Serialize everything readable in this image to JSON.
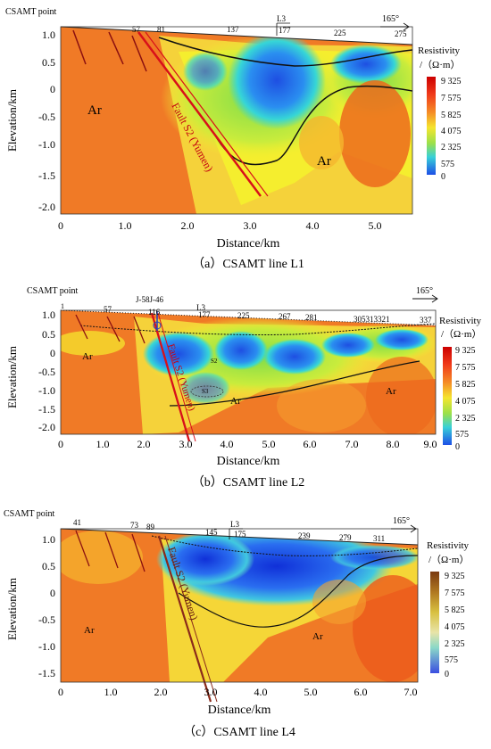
{
  "panels": [
    {
      "id": "a",
      "top_label": "CSAMT point",
      "points": [
        "57",
        "81",
        "137",
        "177",
        "225",
        "275"
      ],
      "line_marker": "L3",
      "azimuth": "165°",
      "inner_labels": [
        "Ar",
        "Ar"
      ],
      "fault_label": "Fault S2 (Yumen)",
      "caption": "（a）CSAMT line L1",
      "ylabel": "Elevation/km",
      "xlabel": "Distance/km",
      "yticks": [
        "1.0",
        "0.5",
        "0",
        "-0.5",
        "-1.0",
        "-1.5",
        "-2.0"
      ],
      "xticks": [
        "0",
        "1.0",
        "2.0",
        "3.0",
        "4.0",
        "5.0"
      ],
      "legend_title": [
        "Resistivity",
        "/（Ω·m）"
      ],
      "legend_values": [
        "9 325",
        "7 575",
        "5 825",
        "4 075",
        "2 325",
        "575",
        "0"
      ]
    },
    {
      "id": "b",
      "top_label": "CSAMT point",
      "well_label": "J-58J-46",
      "points": [
        "1",
        "57",
        "116",
        "177",
        "225",
        "267",
        "281",
        "305313321",
        "337"
      ],
      "line_marker": "L3",
      "azimuth": "165°",
      "inner_labels": [
        "Ar",
        "Ar",
        "Ar",
        "S2",
        "S3"
      ],
      "fault_label": "Fault S2 (Yumen)",
      "caption": "（b）CSAMT line L2",
      "ylabel": "Elevation/km",
      "xlabel": "Distance/km",
      "yticks": [
        "1.0",
        "0.5",
        "0",
        "-0.5",
        "-1.0",
        "-1.5",
        "-2.0"
      ],
      "xticks": [
        "0",
        "1.0",
        "2.0",
        "3.0",
        "4.0",
        "5.0",
        "6.0",
        "7.0",
        "8.0",
        "9.0"
      ],
      "legend_title": [
        "Resistivity",
        "/（Ω·m）"
      ],
      "legend_values": [
        "9 325",
        "7 575",
        "5 825",
        "4 075",
        "2 325",
        "575",
        "0"
      ]
    },
    {
      "id": "c",
      "top_label": "CSAMT point",
      "points": [
        "41",
        "73",
        "89",
        "145",
        "175",
        "239",
        "279",
        "311"
      ],
      "line_marker": "L3",
      "azimuth": "165°",
      "inner_labels": [
        "Ar",
        "Ar"
      ],
      "fault_label": "Fault S2 (Yumen)",
      "caption": "（c）CSAMT line L4",
      "ylabel": "Elevation/km",
      "xlabel": "Distance/km",
      "yticks": [
        "1.0",
        "0.5",
        "0",
        "-0.5",
        "-1.0",
        "-1.5"
      ],
      "xticks": [
        "0",
        "1.0",
        "2.0",
        "3.0",
        "4.0",
        "5.0",
        "6.0",
        "7.0"
      ],
      "legend_title": [
        "Resistivity",
        "/（Ω·m）"
      ],
      "legend_values": [
        "9 325",
        "7 575",
        "5 825",
        "4 075",
        "2 325",
        "575",
        "0"
      ]
    }
  ],
  "colors": {
    "orange": "#f07a26",
    "deep_orange": "#ec6a1c",
    "yellow": "#f5ee2e",
    "green": "#7fdc4a",
    "cyan": "#36d6d6",
    "blue": "#1e55e8",
    "fault_red": "#d8101a"
  }
}
